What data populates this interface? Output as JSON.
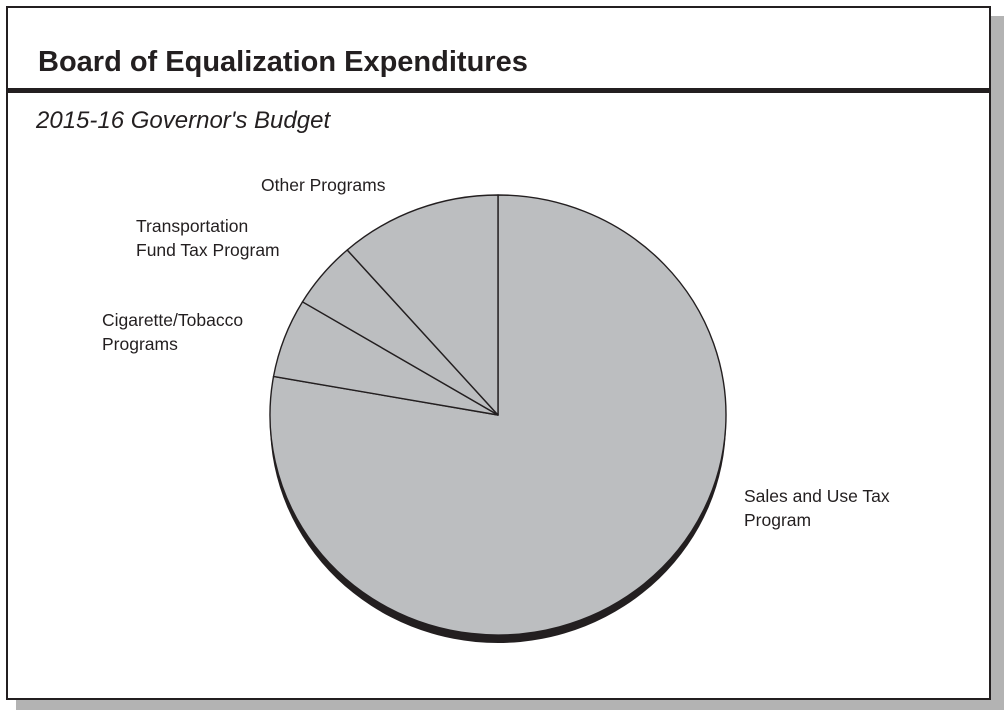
{
  "header": {
    "title": "Board of Equalization Expenditures",
    "subtitle": "2015-16 Governor's Budget"
  },
  "colors": {
    "slice_fill": "#bcbec0",
    "outline": "#231f20",
    "frame_shadow": "#b3b3b3"
  },
  "chart_data": {
    "type": "pie",
    "title": "Board of Equalization Expenditures",
    "subtitle": "2015-16 Governor's Budget",
    "start_angle_deg": 0,
    "direction": "clockwise",
    "slices": [
      {
        "label": "Sales and Use Tax Program",
        "value": 77.8,
        "label_lines": [
          "Sales and Use Tax",
          "Program"
        ]
      },
      {
        "label": "Cigarette/Tobacco Programs",
        "value": 5.8,
        "label_lines": [
          "Cigarette/Tobacco",
          "Programs"
        ]
      },
      {
        "label": "Transportation Fund Tax Program",
        "value": 4.9,
        "label_lines": [
          "Transportation",
          "Fund Tax Program"
        ]
      },
      {
        "label": "Other Programs",
        "value": 11.5,
        "label_lines": [
          "Other Programs"
        ]
      }
    ]
  }
}
